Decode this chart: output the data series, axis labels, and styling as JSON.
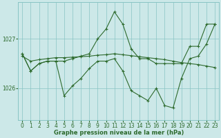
{
  "title": "Graphe pression niveau de la mer (hPa)",
  "background_color": "#cce8e8",
  "grid_color": "#88c4c4",
  "line_color": "#2d6a2d",
  "hours": [
    0,
    1,
    2,
    3,
    4,
    5,
    6,
    7,
    8,
    9,
    10,
    11,
    12,
    13,
    14,
    15,
    16,
    17,
    18,
    19,
    20,
    21,
    22,
    23
  ],
  "series1": [
    1026.7,
    1026.35,
    1026.5,
    1026.55,
    1026.55,
    1026.55,
    1026.6,
    1026.65,
    1026.7,
    1027.0,
    1027.2,
    1027.55,
    1027.3,
    1026.8,
    1026.6,
    1026.6,
    1026.5,
    1026.5,
    1026.5,
    1026.5,
    1026.85,
    1026.85,
    1027.3,
    1027.3
  ],
  "series2": [
    1026.65,
    1026.55,
    1026.58,
    1026.6,
    1026.62,
    1026.62,
    1026.63,
    1026.64,
    1026.65,
    1026.67,
    1026.68,
    1026.7,
    1026.68,
    1026.66,
    1026.64,
    1026.62,
    1026.6,
    1026.58,
    1026.55,
    1026.52,
    1026.5,
    1026.48,
    1026.45,
    1026.42
  ],
  "series3": [
    1026.7,
    1026.35,
    1026.5,
    1026.55,
    1026.55,
    1025.85,
    1026.05,
    1026.2,
    1026.4,
    1026.55,
    1026.55,
    1026.6,
    1026.35,
    1025.95,
    1025.85,
    1025.75,
    1026.0,
    1025.65,
    1025.6,
    1026.2,
    1026.6,
    1026.65,
    1026.9,
    1027.3
  ],
  "ylim": [
    1025.35,
    1027.75
  ],
  "yticks": [
    1026,
    1027
  ],
  "xlim": [
    -0.5,
    23.5
  ],
  "xticks": [
    0,
    1,
    2,
    3,
    4,
    5,
    6,
    7,
    8,
    9,
    10,
    11,
    12,
    13,
    14,
    15,
    16,
    17,
    18,
    19,
    20,
    21,
    22,
    23
  ],
  "xticklabels": [
    "0",
    "1",
    "2",
    "3",
    "4",
    "5",
    "6",
    "7",
    "8",
    "9",
    "10",
    "11",
    "12",
    "13",
    "14",
    "15",
    "16",
    "17",
    "18",
    "19",
    "20",
    "21",
    "22",
    "23"
  ],
  "figsize": [
    3.2,
    2.0
  ],
  "dpi": 100,
  "title_fontsize": 6.0,
  "tick_fontsize": 5.5
}
